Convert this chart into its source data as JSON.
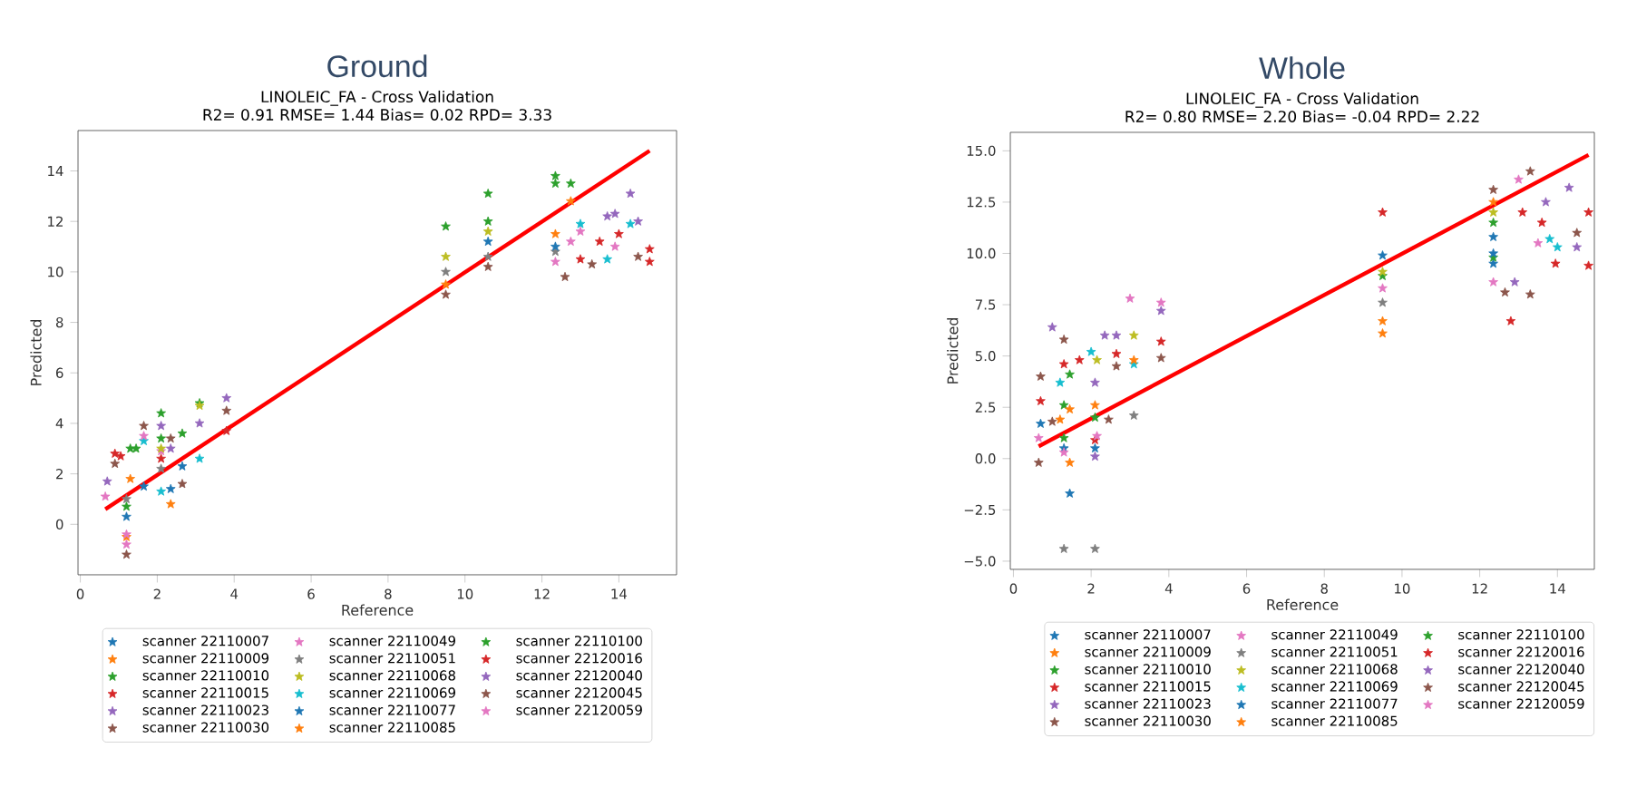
{
  "chart_data": [
    {
      "type": "scatter",
      "title": "Ground",
      "subtitle": "LINOLEIC_FA - Cross Validation",
      "annotations": [
        "R2= 0.91 RMSE= 1.44 Bias= 0.02 RPD= 3.33"
      ],
      "xlabel": "Reference",
      "ylabel": "Predicted",
      "xlim": [
        -0.06,
        15.5
      ],
      "ylim": [
        -2.0,
        15.6
      ],
      "xticks": [
        0,
        2,
        4,
        6,
        8,
        10,
        12,
        14
      ],
      "yticks": [
        0,
        2,
        4,
        6,
        8,
        10,
        12,
        14
      ],
      "legend": "bottom",
      "marker": "star",
      "series": [
        {
          "name": "scanner 22110007",
          "color": "#1f77b4",
          "x": [
            10.6,
            2.35,
            1.2
          ],
          "values": [
            11.2,
            1.4,
            0.3
          ]
        },
        {
          "name": "scanner 22110009",
          "color": "#ff7f0e",
          "x": [
            12.75,
            2.35,
            1.2
          ],
          "values": [
            12.8,
            0.8,
            -0.5
          ]
        },
        {
          "name": "scanner 22110010",
          "color": "#2ca02c",
          "x": [
            12.35,
            10.6,
            9.5,
            2.1,
            3.1,
            1.3,
            1.2
          ],
          "values": [
            13.8,
            13.1,
            11.8,
            4.4,
            4.8,
            3.0,
            0.7
          ]
        },
        {
          "name": "scanner 22110015",
          "color": "#d62728",
          "x": [
            14.8,
            13.0,
            13.5,
            3.8,
            1.05
          ],
          "values": [
            10.4,
            10.5,
            11.2,
            3.7,
            2.7
          ]
        },
        {
          "name": "scanner 22110023",
          "color": "#9467bd",
          "x": [
            14.3,
            13.9,
            3.8,
            2.1,
            0.7
          ],
          "values": [
            13.1,
            12.3,
            5.0,
            3.9,
            1.7
          ]
        },
        {
          "name": "scanner 22110030",
          "color": "#8c564b",
          "x": [
            12.6,
            13.3,
            10.6,
            3.8,
            1.65,
            1.2
          ],
          "values": [
            9.8,
            10.3,
            10.2,
            4.5,
            3.9,
            -1.2
          ]
        },
        {
          "name": "scanner 22110049",
          "color": "#e377c2",
          "x": [
            12.35,
            13.9,
            1.2,
            0.65,
            2.1
          ],
          "values": [
            10.4,
            11.0,
            -0.8,
            1.1,
            2.9
          ]
        },
        {
          "name": "scanner 22110051",
          "color": "#7f7f7f",
          "x": [
            9.5,
            10.6,
            12.35,
            1.2,
            2.1
          ],
          "values": [
            10.0,
            10.6,
            10.8,
            1.0,
            2.2
          ]
        },
        {
          "name": "scanner 22110068",
          "color": "#bcbd22",
          "x": [
            9.5,
            10.6,
            3.1,
            2.1
          ],
          "values": [
            10.6,
            11.6,
            4.7,
            3.0
          ]
        },
        {
          "name": "scanner 22110069",
          "color": "#17becf",
          "x": [
            13.0,
            14.3,
            13.7,
            3.1,
            2.1,
            1.65
          ],
          "values": [
            11.9,
            11.9,
            10.5,
            2.6,
            1.3,
            3.3
          ]
        },
        {
          "name": "scanner 22110077",
          "color": "#1f77b4",
          "x": [
            12.35,
            1.65,
            2.65
          ],
          "values": [
            11.0,
            1.5,
            2.3
          ]
        },
        {
          "name": "scanner 22110085",
          "color": "#ff7f0e",
          "x": [
            12.35,
            9.5,
            1.3
          ],
          "values": [
            11.5,
            9.5,
            1.8
          ]
        },
        {
          "name": "scanner 22110100",
          "color": "#2ca02c",
          "x": [
            12.35,
            12.75,
            10.6,
            2.1,
            1.45,
            2.65
          ],
          "values": [
            13.5,
            13.5,
            12.0,
            3.4,
            3.0,
            3.6
          ]
        },
        {
          "name": "scanner 22120016",
          "color": "#d62728",
          "x": [
            14.8,
            14.0,
            2.1,
            0.9
          ],
          "values": [
            10.9,
            11.5,
            2.6,
            2.8
          ]
        },
        {
          "name": "scanner 22120040",
          "color": "#9467bd",
          "x": [
            13.7,
            14.5,
            3.1,
            2.35
          ],
          "values": [
            12.2,
            12.0,
            4.0,
            3.0
          ]
        },
        {
          "name": "scanner 22120045",
          "color": "#8c564b",
          "x": [
            14.5,
            9.5,
            2.65,
            2.35,
            0.9
          ],
          "values": [
            10.6,
            9.1,
            1.6,
            3.4,
            2.4
          ]
        },
        {
          "name": "scanner 22120059",
          "color": "#e377c2",
          "x": [
            13.0,
            1.2,
            1.65,
            12.75
          ],
          "values": [
            11.6,
            -0.4,
            3.5,
            11.2
          ]
        },
        {
          "type": "line",
          "marker": "none",
          "color": "#ff0000",
          "x": [
            0.65,
            14.8
          ],
          "values": [
            0.6,
            14.8
          ]
        }
      ]
    },
    {
      "type": "scatter",
      "title": "Whole",
      "subtitle": "LINOLEIC_FA - Cross Validation",
      "annotations": [
        "R2= 0.80 RMSE= 2.20 Bias= -0.04 RPD= 2.22"
      ],
      "xlabel": "Reference",
      "ylabel": "Predicted",
      "xlim": [
        -0.08,
        14.95
      ],
      "ylim": [
        -5.4,
        15.9
      ],
      "xticks": [
        0,
        2,
        4,
        6,
        8,
        10,
        12,
        14
      ],
      "yticks": [
        {
          "value": -5,
          "label": "−5.0"
        },
        {
          "value": -2.5,
          "label": "−2.5"
        },
        {
          "value": 0,
          "label": "0.0"
        },
        {
          "value": 2.5,
          "label": "2.5"
        },
        {
          "value": 5,
          "label": "5.0"
        },
        {
          "value": 7.5,
          "label": "7.5"
        },
        {
          "value": 10,
          "label": "10.0"
        },
        {
          "value": 12.5,
          "label": "12.5"
        },
        {
          "value": 15,
          "label": "15.0"
        }
      ],
      "legend": "bottom",
      "marker": "star",
      "series": [
        {
          "name": "scanner 22110007",
          "color": "#1f77b4",
          "x": [
            9.5,
            12.35,
            1.45,
            1.3
          ],
          "values": [
            9.9,
            9.5,
            -1.7,
            0.5
          ]
        },
        {
          "name": "scanner 22110009",
          "color": "#ff7f0e",
          "x": [
            9.5,
            12.35,
            1.45,
            2.1
          ],
          "values": [
            6.7,
            12.5,
            -0.2,
            2.6
          ]
        },
        {
          "name": "scanner 22110010",
          "color": "#2ca02c",
          "x": [
            9.5,
            12.35,
            1.45,
            1.3
          ],
          "values": [
            8.9,
            9.8,
            4.1,
            2.6
          ]
        },
        {
          "name": "scanner 22110015",
          "color": "#d62728",
          "x": [
            9.5,
            14.8,
            12.8,
            13.1,
            3.8,
            1.7,
            2.1
          ],
          "values": [
            12.0,
            12.0,
            6.7,
            12.0,
            5.7,
            4.8,
            0.9
          ]
        },
        {
          "name": "scanner 22110023",
          "color": "#9467bd",
          "x": [
            14.3,
            12.9,
            1.0,
            2.35,
            3.8,
            2.1
          ],
          "values": [
            13.2,
            8.6,
            6.4,
            6.0,
            7.2,
            0.1
          ]
        },
        {
          "name": "scanner 22110030",
          "color": "#8c564b",
          "x": [
            13.3,
            12.65,
            14.5,
            1.3,
            0.65,
            2.45
          ],
          "values": [
            14.0,
            8.1,
            11.0,
            5.8,
            -0.2,
            1.9
          ]
        },
        {
          "name": "scanner 22110049",
          "color": "#e377c2",
          "x": [
            13.0,
            12.35,
            3.0,
            1.3,
            9.5
          ],
          "values": [
            13.6,
            8.6,
            7.8,
            0.3,
            8.3
          ]
        },
        {
          "name": "scanner 22110051",
          "color": "#7f7f7f",
          "x": [
            1.3,
            2.1,
            3.1,
            9.5
          ],
          "values": [
            -4.4,
            -4.4,
            2.1,
            7.6
          ]
        },
        {
          "name": "scanner 22110068",
          "color": "#bcbd22",
          "x": [
            3.1,
            2.15,
            9.5,
            12.35
          ],
          "values": [
            6.0,
            4.8,
            9.1,
            12.0
          ]
        },
        {
          "name": "scanner 22110069",
          "color": "#17becf",
          "x": [
            14.0,
            13.8,
            2.0,
            1.2,
            3.1
          ],
          "values": [
            10.3,
            10.7,
            5.2,
            3.7,
            4.6
          ]
        },
        {
          "name": "scanner 22110077",
          "color": "#1f77b4",
          "x": [
            12.35,
            2.1,
            0.7,
            12.35
          ],
          "values": [
            10.0,
            0.5,
            1.7,
            10.8
          ]
        },
        {
          "name": "scanner 22110085",
          "color": "#ff7f0e",
          "x": [
            9.5,
            1.45,
            3.1,
            1.2
          ],
          "values": [
            6.1,
            2.4,
            4.8,
            1.9
          ]
        },
        {
          "name": "scanner 22110100",
          "color": "#2ca02c",
          "x": [
            2.1,
            1.3,
            12.35
          ],
          "values": [
            2.0,
            1.0,
            11.5
          ]
        },
        {
          "name": "scanner 22120016",
          "color": "#d62728",
          "x": [
            14.8,
            13.95,
            1.3,
            0.7,
            2.65,
            13.6
          ],
          "values": [
            9.4,
            9.5,
            4.6,
            2.8,
            5.1,
            11.5
          ]
        },
        {
          "name": "scanner 22120040",
          "color": "#9467bd",
          "x": [
            13.7,
            14.5,
            2.65,
            2.1
          ],
          "values": [
            12.5,
            10.3,
            6.0,
            3.7
          ]
        },
        {
          "name": "scanner 22120045",
          "color": "#8c564b",
          "x": [
            12.35,
            13.3,
            0.7,
            3.8,
            1.0,
            2.65
          ],
          "values": [
            13.1,
            8.0,
            4.0,
            4.9,
            1.8,
            4.5
          ]
        },
        {
          "name": "scanner 22120059",
          "color": "#e377c2",
          "x": [
            13.5,
            3.8,
            2.15,
            0.65
          ],
          "values": [
            10.5,
            7.6,
            1.1,
            1.0
          ]
        },
        {
          "type": "line",
          "marker": "none",
          "color": "#ff0000",
          "x": [
            0.65,
            14.8
          ],
          "values": [
            0.6,
            14.8
          ]
        }
      ]
    }
  ]
}
